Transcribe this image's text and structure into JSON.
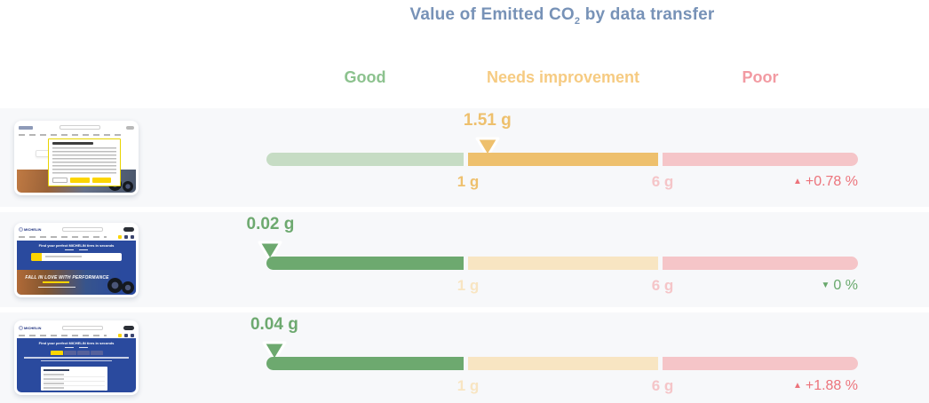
{
  "title": {
    "prefix": "Value of Emitted CO",
    "subscript": "2",
    "suffix": " by data transfer"
  },
  "brand": "MICHELIN",
  "zone_headers": [
    {
      "label": "Good"
    },
    {
      "label": "Needs improvement"
    },
    {
      "label": "Poor"
    }
  ],
  "gauge": {
    "tick1_label": "1 g",
    "tick2_label": "6 g"
  },
  "rows": [
    {
      "thumbnail": "cookie-consent-dialog-page",
      "value_g": 1.51,
      "value_label": "1.51 g",
      "delta_label": "+0.78 %",
      "delta_dir": "up"
    },
    {
      "thumbnail": "homepage",
      "hero_text": "FALL IN LOVE WITH PERFORMANCE",
      "heading_text": "Find your perfect MICHELIN tires in seconds",
      "value_g": 0.02,
      "value_label": "0.02 g",
      "delta_label": "0 %",
      "delta_dir": "down"
    },
    {
      "thumbnail": "tire-selector-page",
      "heading_text": "Find your perfect MICHELIN tires in seconds",
      "value_g": 0.04,
      "value_label": "0.04 g",
      "delta_label": "+1.88 %",
      "delta_dir": "up"
    }
  ],
  "colors": {
    "title": "#7792b7",
    "row_bg": "#f7f8fa",
    "good_strong": "#6da96f",
    "good_muted": "#c6dcc4",
    "good_header": "#8cc28e",
    "warn_strong": "#eec06d",
    "warn_muted": "#f8e5c2",
    "warn_header": "#f6cb82",
    "poor_strong": "#f2939e",
    "poor_muted": "#f5c5c8",
    "poor_header": "#f29aa2",
    "delta_up": "#ec737b",
    "delta_down": "#68a86c",
    "michelin_blue": "#2a4a9e",
    "michelin_yellow": "#fcd500"
  },
  "chart_data": {
    "type": "bar",
    "variant": "bullet-gauge-comparison",
    "title": "Value of Emitted CO2 by data transfer",
    "zones": [
      {
        "label": "Good",
        "range_g": [
          0,
          1
        ]
      },
      {
        "label": "Needs improvement",
        "range_g": [
          1,
          6
        ]
      },
      {
        "label": "Poor",
        "range_g": [
          6,
          null
        ]
      }
    ],
    "tick_labels": [
      "1 g",
      "6 g"
    ],
    "legend_position": "top",
    "grid": false,
    "series": [
      {
        "name": "cookie-consent-dialog-page",
        "value_g": 1.51,
        "zone": "Needs improvement",
        "change_pct": 0.78,
        "change_dir": "up"
      },
      {
        "name": "homepage",
        "value_g": 0.02,
        "zone": "Good",
        "change_pct": 0,
        "change_dir": "down"
      },
      {
        "name": "tire-selector-page",
        "value_g": 0.04,
        "zone": "Good",
        "change_pct": 1.88,
        "change_dir": "up"
      }
    ]
  }
}
